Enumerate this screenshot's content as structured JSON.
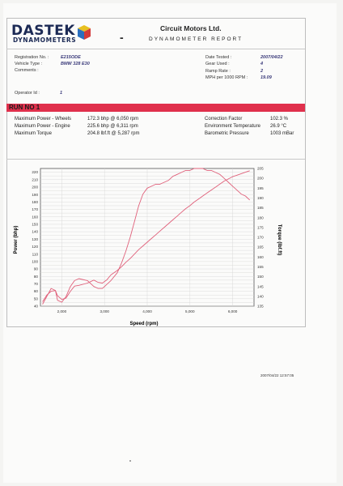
{
  "header": {
    "logo_top": "DASTEK",
    "logo_bottom": "DYNAMOMETERS",
    "dash": "-",
    "company": "Circuit Motors Ltd.",
    "report_title": "DYNAMOMETER REPORT"
  },
  "info_left": [
    {
      "label": "Registration No. :",
      "value": "E215ODE"
    },
    {
      "label": "Vehicle Type :",
      "value": "BMW 328 E30"
    },
    {
      "label": "Comments :",
      "value": ""
    },
    {
      "label": "Operator Id :",
      "value": "1"
    }
  ],
  "info_right": [
    {
      "label": "Date Tested :",
      "value": "2007/04/22"
    },
    {
      "label": "Gear Used :",
      "value": "4"
    },
    {
      "label": "Ramp Rate :",
      "value": "2"
    },
    {
      "label": "MPH per 1000 RPM :",
      "value": "19.09"
    }
  ],
  "run_title": "RUN NO 1",
  "results_left": [
    {
      "label": "Maximum Power - Wheels",
      "value": "172.3  bhp @ 6,050 rpm"
    },
    {
      "label": "Maximum Power - Engine",
      "value": "225.6  bhp @ 6,311 rpm"
    },
    {
      "label": "Maximum Torque",
      "value": "204.8 lbf.ft @ 5,287 rpm"
    }
  ],
  "results_right": [
    {
      "label": "Correction Factor",
      "value": "102.3 %"
    },
    {
      "label": "Environment Temperature",
      "value": "26.9 °C"
    },
    {
      "label": "Barometric Pressure",
      "value": "1003 mBar"
    }
  ],
  "chart_data": {
    "type": "line",
    "xlabel": "Speed (rpm)",
    "ylabel": "Power (bhp)",
    "y2label": "Torque (lbf.ft)",
    "xlim": [
      1500,
      6500
    ],
    "ylim": [
      40,
      225
    ],
    "y2lim": [
      135,
      205
    ],
    "xticks": [
      "2,000",
      "3,000",
      "4,000",
      "5,000",
      "6,000"
    ],
    "xtick_values": [
      2000,
      3000,
      4000,
      5000,
      6000
    ],
    "yticks": [
      40,
      45,
      50,
      55,
      60,
      65,
      70,
      75,
      80,
      85,
      90,
      95,
      100,
      105,
      110,
      115,
      120,
      125,
      130,
      135,
      140,
      145,
      150,
      155,
      160,
      165,
      170,
      175,
      180,
      185,
      190,
      195,
      200,
      205,
      210,
      215,
      220
    ],
    "yticks_labeled": [
      40,
      50,
      60,
      70,
      80,
      90,
      100,
      110,
      120,
      130,
      140,
      150,
      160,
      170,
      180,
      190,
      200,
      210,
      220
    ],
    "y2ticks": [
      135,
      140,
      145,
      150,
      155,
      160,
      165,
      170,
      175,
      180,
      185,
      190,
      195,
      200,
      205
    ],
    "grid": true,
    "line_color": "#e0607a",
    "series": [
      {
        "axis": "left",
        "x": [
          1550,
          1650,
          1750,
          1850,
          1900,
          2000,
          2100,
          2200,
          2300,
          2400,
          2600,
          2750,
          2850,
          2950,
          3050,
          3150,
          3300,
          3400,
          3500,
          3600,
          3700,
          3800,
          3900,
          4000,
          4100,
          4200,
          4300,
          4400,
          4500,
          4600,
          4700,
          4800,
          4900,
          5000,
          5100,
          5200,
          5300,
          5400,
          5500,
          5600,
          5700,
          5800,
          5900,
          6000,
          6100,
          6200,
          6300,
          6400
        ],
        "y": [
          46,
          55,
          60,
          61,
          54,
          49,
          51,
          60,
          67,
          68,
          71,
          75,
          72,
          71,
          75,
          82,
          88,
          93,
          99,
          104,
          110,
          116,
          121,
          126,
          131,
          136,
          141,
          146,
          151,
          156,
          161,
          166,
          171,
          175,
          180,
          184,
          188,
          192,
          196,
          200,
          204,
          208,
          211,
          214,
          216,
          218,
          220,
          222
        ]
      },
      {
        "axis": "right",
        "x": [
          1550,
          1650,
          1750,
          1850,
          1900,
          2000,
          2100,
          2200,
          2300,
          2400,
          2600,
          2750,
          2850,
          2950,
          3050,
          3150,
          3300,
          3400,
          3500,
          3600,
          3700,
          3800,
          3900,
          4000,
          4100,
          4200,
          4300,
          4400,
          4500,
          4600,
          4700,
          4800,
          4900,
          5000,
          5100,
          5200,
          5300,
          5400,
          5500,
          5600,
          5700,
          5800,
          5900,
          6000,
          6100,
          6200,
          6300,
          6400
        ],
        "y": [
          136,
          140,
          144,
          143,
          138,
          137,
          140,
          145,
          148,
          149,
          148,
          145,
          144,
          144,
          146,
          148,
          152,
          157,
          163,
          170,
          178,
          186,
          192,
          195,
          196,
          197,
          197,
          198,
          199,
          201,
          202,
          203,
          204,
          204,
          205,
          205,
          205,
          204,
          204,
          203,
          202,
          200,
          198,
          196,
          194,
          192,
          191,
          189
        ]
      }
    ]
  },
  "timestamp": "2007/04/22 12:57:05"
}
